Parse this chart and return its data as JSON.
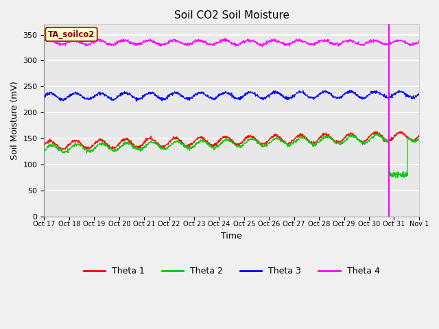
{
  "title": "Soil CO2 Soil Moisture",
  "xlabel": "Time",
  "ylabel": "Soil Moisture (mV)",
  "ylim": [
    0,
    370
  ],
  "yticks": [
    0,
    50,
    100,
    150,
    200,
    250,
    300,
    350
  ],
  "xtick_labels": [
    "Oct 17",
    "Oct 18",
    "Oct 19",
    "Oct 20",
    "Oct 21",
    "Oct 22",
    "Oct 23",
    "Oct 24",
    "Oct 25",
    "Oct 26",
    "Oct 27",
    "Oct 28",
    "Oct 29",
    "Oct 30",
    "Oct 31",
    "Nov 1"
  ],
  "annotation_label": "TA_soilco2",
  "annotation_box_color": "#ffffcc",
  "annotation_border_color": "#8B4513",
  "annotation_text_color": "#8B0000",
  "colors": {
    "theta1": "#ff0000",
    "theta2": "#00cc00",
    "theta3": "#0000ff",
    "theta4": "#ff00ff"
  },
  "legend_labels": [
    "Theta 1",
    "Theta 2",
    "Theta 3",
    "Theta 4"
  ],
  "bg_color": "#e8e8e8",
  "fig_color": "#f0f0f0",
  "grid_color": "#ffffff",
  "theta1_base": 137,
  "theta2_base": 130,
  "theta3_base": 231,
  "theta4_base": 335,
  "n_days": 15,
  "n_points": 1440,
  "spike_day": 13.8,
  "spike_color": "#ff00ff"
}
